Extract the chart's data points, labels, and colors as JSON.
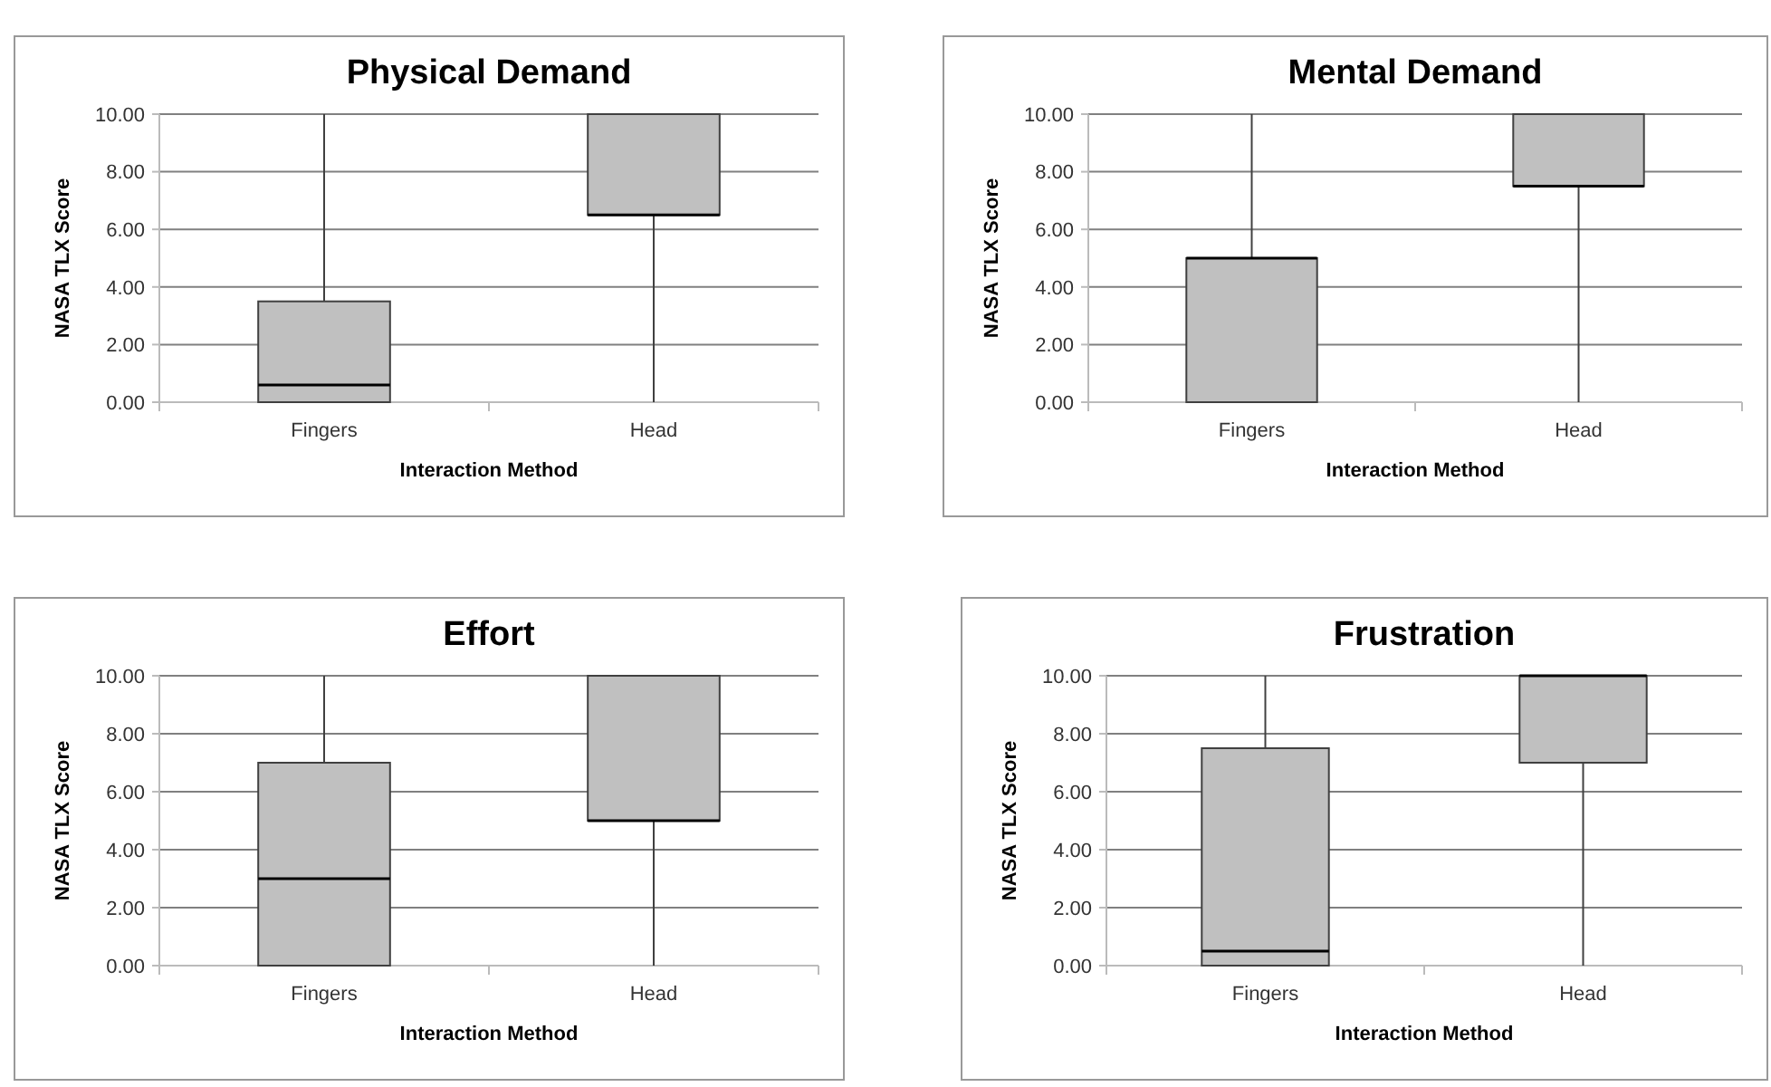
{
  "chart_data": [
    {
      "type": "box",
      "title": "Physical Demand",
      "xlabel": "Interaction Method",
      "ylabel": "NASA TLX Score",
      "categories": [
        "Fingers",
        "Head"
      ],
      "ylim": [
        0,
        10
      ],
      "yticks": [
        {
          "value": 0,
          "label": "0.00"
        },
        {
          "value": 2,
          "label": "2.00"
        },
        {
          "value": 4,
          "label": "4.00"
        },
        {
          "value": 6,
          "label": "6.00"
        },
        {
          "value": 8,
          "label": "8.00"
        },
        {
          "value": 10,
          "label": "10.00"
        }
      ],
      "grid": "y",
      "series": [
        {
          "color": "#c0c0c0",
          "boxes": [
            {
              "low": 0,
              "q1": 0,
              "median": 0.6,
              "q3": 3.5,
              "high": 10
            },
            {
              "low": 0,
              "q1": 6.5,
              "median": 6.5,
              "q3": 10,
              "high": 10
            }
          ]
        }
      ]
    },
    {
      "type": "box",
      "title": "Mental Demand",
      "xlabel": "Interaction Method",
      "ylabel": "NASA TLX Score",
      "categories": [
        "Fingers",
        "Head"
      ],
      "ylim": [
        0,
        10
      ],
      "yticks": [
        {
          "value": 0,
          "label": "0.00"
        },
        {
          "value": 2,
          "label": "2.00"
        },
        {
          "value": 4,
          "label": "4.00"
        },
        {
          "value": 6,
          "label": "6.00"
        },
        {
          "value": 8,
          "label": "8.00"
        },
        {
          "value": 10,
          "label": "10.00"
        }
      ],
      "grid": "y",
      "series": [
        {
          "color": "#c0c0c0",
          "boxes": [
            {
              "low": 0,
              "q1": 0,
              "median": 5,
              "q3": 5,
              "high": 10
            },
            {
              "low": 0,
              "q1": 7.5,
              "median": 7.5,
              "q3": 10,
              "high": 10
            }
          ]
        }
      ]
    },
    {
      "type": "box",
      "title": "Effort",
      "xlabel": "Interaction Method",
      "ylabel": "NASA TLX Score",
      "categories": [
        "Fingers",
        "Head"
      ],
      "ylim": [
        0,
        10
      ],
      "yticks": [
        {
          "value": 0,
          "label": "0.00"
        },
        {
          "value": 2,
          "label": "2.00"
        },
        {
          "value": 4,
          "label": "4.00"
        },
        {
          "value": 6,
          "label": "6.00"
        },
        {
          "value": 8,
          "label": "8.00"
        },
        {
          "value": 10,
          "label": "10.00"
        }
      ],
      "grid": "y",
      "series": [
        {
          "color": "#c0c0c0",
          "boxes": [
            {
              "low": 0,
              "q1": 0,
              "median": 3,
              "q3": 7,
              "high": 10
            },
            {
              "low": 0,
              "q1": 5,
              "median": 5,
              "q3": 10,
              "high": 10
            }
          ]
        }
      ]
    },
    {
      "type": "box",
      "title": "Frustration",
      "xlabel": "Interaction Method",
      "ylabel": "NASA TLX Score",
      "categories": [
        "Fingers",
        "Head"
      ],
      "ylim": [
        0,
        10
      ],
      "yticks": [
        {
          "value": 0,
          "label": "0.00"
        },
        {
          "value": 2,
          "label": "2.00"
        },
        {
          "value": 4,
          "label": "4.00"
        },
        {
          "value": 6,
          "label": "6.00"
        },
        {
          "value": 8,
          "label": "8.00"
        },
        {
          "value": 10,
          "label": "10.00"
        }
      ],
      "grid": "y",
      "series": [
        {
          "color": "#c0c0c0",
          "boxes": [
            {
              "low": 0,
              "q1": 0,
              "median": 0.5,
              "q3": 7.5,
              "high": 10
            },
            {
              "low": 0,
              "q1": 7,
              "median": 10,
              "q3": 10,
              "high": 10
            }
          ]
        }
      ]
    }
  ]
}
